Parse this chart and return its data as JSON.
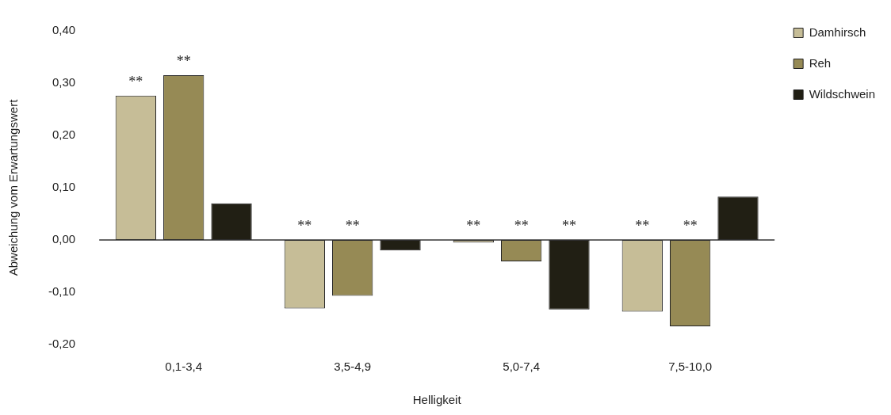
{
  "chart_data": {
    "type": "bar",
    "xlabel": "Helligkeit",
    "ylabel": "Abweichung vom Erwartungswert",
    "categories": [
      "0,1-3,4",
      "3,5-4,9",
      "5,0-7,4",
      "7,5-10,0"
    ],
    "series": [
      {
        "name": "Damhirsch",
        "color": "#c6bd97",
        "values": [
          0.276,
          -0.131,
          -0.005,
          -0.137
        ],
        "value_labels": [
          "**",
          "**",
          "**",
          "**"
        ]
      },
      {
        "name": "Reh",
        "color": "#968a55",
        "values": [
          0.315,
          -0.107,
          -0.041,
          -0.165
        ],
        "value_labels": [
          "**",
          "**",
          "**",
          "**"
        ]
      },
      {
        "name": "Wildschwein",
        "color": "#211f14",
        "values": [
          0.07,
          -0.02,
          -0.133,
          0.083
        ],
        "value_labels": [
          null,
          null,
          "**",
          null
        ]
      }
    ],
    "ylim": [
      -0.2,
      0.4
    ],
    "yticks": [
      {
        "value": -0.2,
        "label": "-0,20"
      },
      {
        "value": -0.1,
        "label": "-0,10"
      },
      {
        "value": 0,
        "label": "0,00"
      },
      {
        "value": 0.1,
        "label": "0,10"
      },
      {
        "value": 0.2,
        "label": "0,20"
      },
      {
        "value": 0.3,
        "label": "0,30"
      },
      {
        "value": 0.4,
        "label": "0,40"
      }
    ],
    "ref_lines": [
      {
        "axis": "y",
        "value": 0,
        "color": "#333333"
      }
    ],
    "grid": false,
    "legend": "top right"
  }
}
